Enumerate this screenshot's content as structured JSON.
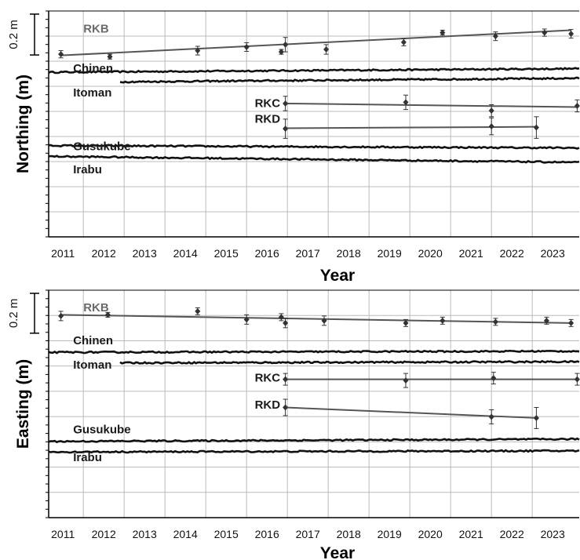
{
  "scale_bar": {
    "label": "0.2 m",
    "value_m": 0.2
  },
  "colors": {
    "campaign": "#555555",
    "continuous": "#111111",
    "grid": "#bbbbbb",
    "label_gray": "#6b6b6b",
    "label_dark": "#1a1a1a"
  },
  "chart_data": [
    {
      "type": "scatter",
      "title": "",
      "xlabel": "Year",
      "ylabel": "Northing (m)",
      "xlim": [
        2010.65,
        2023.65
      ],
      "x_ticks": [
        {
          "label": "2011",
          "value": 2011
        },
        {
          "label": "2012",
          "value": 2012
        },
        {
          "label": "2013",
          "value": 2013
        },
        {
          "label": "2014",
          "value": 2014
        },
        {
          "label": "2015",
          "value": 2015
        },
        {
          "label": "2016",
          "value": 2016
        },
        {
          "label": "2017",
          "value": 2017
        },
        {
          "label": "2018",
          "value": 2018
        },
        {
          "label": "2019",
          "value": 2019
        },
        {
          "label": "2020",
          "value": 2020
        },
        {
          "label": "2021",
          "value": 2021
        },
        {
          "label": "2022",
          "value": 2022
        },
        {
          "label": "2023",
          "value": 2023
        }
      ],
      "ylim": [
        -0.68,
        0.26
      ],
      "grid": true,
      "series": [
        {
          "name": "RKB",
          "kind": "campaign",
          "label_pos": [
            2011.5,
            0.17
          ],
          "label_color": "gray",
          "x": [
            2010.95,
            2012.15,
            2014.3,
            2015.5,
            2016.35,
            2016.45,
            2017.45,
            2019.35,
            2020.3,
            2021.6,
            2022.8,
            2023.45
          ],
          "y": [
            0.08,
            0.07,
            0.095,
            0.11,
            0.09,
            0.12,
            0.1,
            0.13,
            0.17,
            0.155,
            0.17,
            0.165
          ],
          "err": [
            0.015,
            0.01,
            0.018,
            0.018,
            0.01,
            0.03,
            0.02,
            0.015,
            0.01,
            0.018,
            0.015,
            0.018
          ],
          "fit": [
            [
              2010.95,
              0.075
            ],
            [
              2023.45,
              0.18
            ]
          ]
        },
        {
          "name": "RKC",
          "kind": "campaign",
          "label_pos": [
            2015.7,
            -0.14
          ],
          "label_color": "dark",
          "x": [
            2016.45,
            2019.4,
            2021.5,
            2023.6
          ],
          "y": [
            -0.125,
            -0.12,
            -0.155,
            -0.135
          ],
          "err": [
            0.03,
            0.03,
            0.025,
            0.025
          ],
          "fit": [
            [
              2016.45,
              -0.125
            ],
            [
              2023.6,
              -0.14
            ]
          ]
        },
        {
          "name": "RKD",
          "kind": "campaign",
          "label_pos": [
            2015.7,
            -0.205
          ],
          "label_color": "dark",
          "x": [
            2016.45,
            2021.5,
            2022.6
          ],
          "y": [
            -0.23,
            -0.22,
            -0.225
          ],
          "err": [
            0.04,
            0.035,
            0.045
          ],
          "fit": [
            [
              2016.45,
              -0.228
            ],
            [
              2022.6,
              -0.222
            ]
          ]
        },
        {
          "name": "Chinen",
          "kind": "continuous",
          "label_pos": [
            2011.25,
            0.005
          ],
          "label_color": "dark",
          "start": 2010.65,
          "end": 2023.65,
          "y0": 0.005,
          "y1": 0.02
        },
        {
          "name": "Itoman",
          "kind": "continuous",
          "label_pos": [
            2011.25,
            -0.095
          ],
          "label_color": "dark",
          "start": 2012.4,
          "end": 2023.65,
          "y0": -0.035,
          "y1": -0.02
        },
        {
          "name": "Gusukube",
          "kind": "continuous",
          "label_pos": [
            2011.25,
            -0.32
          ],
          "label_color": "dark",
          "start": 2010.65,
          "end": 2023.65,
          "y0": -0.3,
          "y1": -0.31
        },
        {
          "name": "Irabu",
          "kind": "continuous",
          "label_pos": [
            2011.25,
            -0.415
          ],
          "label_color": "dark",
          "start": 2010.65,
          "end": 2023.65,
          "y0": -0.345,
          "y1": -0.37
        }
      ]
    },
    {
      "type": "scatter",
      "title": "",
      "xlabel": "Year",
      "ylabel": "Easting (m)",
      "xlim": [
        2010.65,
        2023.65
      ],
      "x_ticks": [
        {
          "label": "2011",
          "value": 2011
        },
        {
          "label": "2012",
          "value": 2012
        },
        {
          "label": "2013",
          "value": 2013
        },
        {
          "label": "2014",
          "value": 2014
        },
        {
          "label": "2015",
          "value": 2015
        },
        {
          "label": "2016",
          "value": 2016
        },
        {
          "label": "2017",
          "value": 2017
        },
        {
          "label": "2018",
          "value": 2018
        },
        {
          "label": "2019",
          "value": 2019
        },
        {
          "label": "2020",
          "value": 2020
        },
        {
          "label": "2021",
          "value": 2021
        },
        {
          "label": "2022",
          "value": 2022
        },
        {
          "label": "2023",
          "value": 2023
        }
      ],
      "ylim": [
        -0.7,
        0.27
      ],
      "grid": true,
      "series": [
        {
          "name": "RKB",
          "kind": "campaign",
          "label_pos": [
            2011.5,
            0.18
          ],
          "label_color": "gray",
          "x": [
            2010.95,
            2012.1,
            2014.3,
            2015.5,
            2016.35,
            2016.45,
            2017.4,
            2019.4,
            2020.3,
            2021.6,
            2022.85,
            2023.45
          ],
          "y": [
            0.16,
            0.165,
            0.18,
            0.145,
            0.155,
            0.13,
            0.14,
            0.13,
            0.14,
            0.135,
            0.14,
            0.13
          ],
          "err": [
            0.02,
            0.01,
            0.015,
            0.02,
            0.015,
            0.02,
            0.02,
            0.015,
            0.015,
            0.015,
            0.015,
            0.015
          ],
          "fit": [
            [
              2010.95,
              0.165
            ],
            [
              2023.45,
              0.13
            ]
          ]
        },
        {
          "name": "RKC",
          "kind": "campaign",
          "label_pos": [
            2015.7,
            -0.12
          ],
          "label_color": "dark",
          "x": [
            2016.45,
            2019.4,
            2021.55,
            2023.6
          ],
          "y": [
            -0.11,
            -0.115,
            -0.105,
            -0.11
          ],
          "err": [
            0.025,
            0.03,
            0.025,
            0.025
          ],
          "fit": [
            [
              2016.45,
              -0.11
            ],
            [
              2023.6,
              -0.11
            ]
          ]
        },
        {
          "name": "RKD",
          "kind": "campaign",
          "label_pos": [
            2015.7,
            -0.235
          ],
          "label_color": "dark",
          "x": [
            2016.45,
            2021.5,
            2022.6
          ],
          "y": [
            -0.23,
            -0.27,
            -0.275
          ],
          "err": [
            0.035,
            0.03,
            0.045
          ],
          "fit": [
            [
              2016.45,
              -0.23
            ],
            [
              2022.6,
              -0.275
            ]
          ]
        },
        {
          "name": "Chinen",
          "kind": "continuous",
          "label_pos": [
            2011.25,
            0.04
          ],
          "label_color": "dark",
          "start": 2010.65,
          "end": 2023.65,
          "y0": 0.005,
          "y1": 0.01
        },
        {
          "name": "Itoman",
          "kind": "continuous",
          "label_pos": [
            2011.25,
            -0.065
          ],
          "label_color": "dark",
          "start": 2012.4,
          "end": 2023.65,
          "y0": -0.04,
          "y1": -0.035
        },
        {
          "name": "Gusukube",
          "kind": "continuous",
          "label_pos": [
            2011.25,
            -0.34
          ],
          "label_color": "dark",
          "start": 2010.65,
          "end": 2023.65,
          "y0": -0.375,
          "y1": -0.365
        },
        {
          "name": "Irabu",
          "kind": "continuous",
          "label_pos": [
            2011.25,
            -0.46
          ],
          "label_color": "dark",
          "start": 2010.65,
          "end": 2023.65,
          "y0": -0.42,
          "y1": -0.415
        }
      ]
    }
  ]
}
